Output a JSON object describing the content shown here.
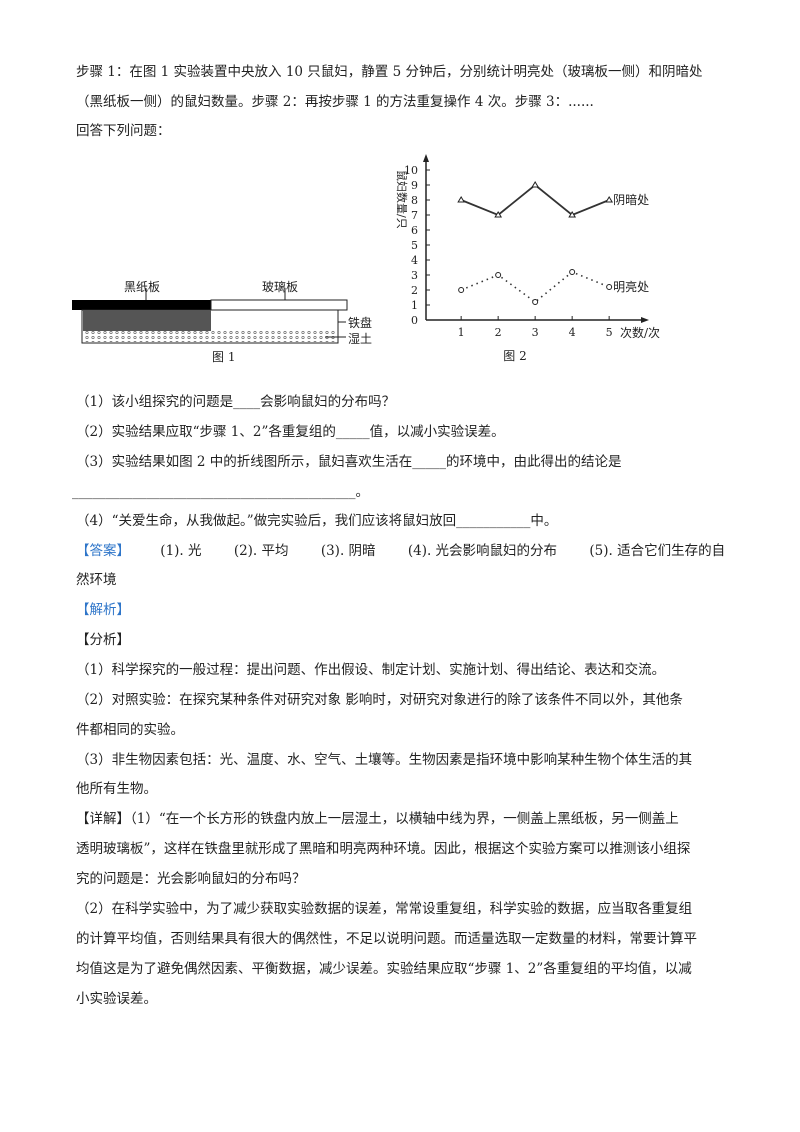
{
  "intro": {
    "lines": [
      "步骤 1：在图 1 实验装置中央放入 10 只鼠妇，静置 5 分钟后，分别统计明亮处（玻璃板一侧）和阴暗处",
      "（黑纸板一侧）的鼠妇数量。步骤 2：再按步骤 1 的方法重复操作 4 次。步骤 3：......",
      "回答下列问题："
    ]
  },
  "figure1": {
    "black_board": "黑纸板",
    "glass_board": "玻璃板",
    "iron_tray": "铁盘",
    "wet_soil": "湿土",
    "caption": "图 1"
  },
  "chart_data": {
    "type": "line",
    "ylabel": "鼠妇数量/只",
    "xlabel": "次数/次",
    "caption": "图 2",
    "x": [
      1,
      2,
      3,
      4,
      5
    ],
    "ylim": [
      0,
      10
    ],
    "yticks": [
      "0",
      "1",
      "2",
      "3",
      "4",
      "5",
      "6",
      "7",
      "8",
      "9",
      "10"
    ],
    "xticks": [
      "1",
      "2",
      "3",
      "4",
      "5"
    ],
    "grid": false,
    "series": [
      {
        "name": "阴暗处",
        "values": [
          8,
          7,
          9,
          7,
          8
        ],
        "style": "solid",
        "marker": "triangle"
      },
      {
        "name": "明亮处",
        "values": [
          2,
          3,
          1.2,
          3.2,
          2.2
        ],
        "style": "dotted",
        "marker": "circle"
      }
    ]
  },
  "questions": {
    "q1": "（1）该小组探究的问题是____会影响鼠妇的分布吗？",
    "q2": "（2）实验结果应取“步骤 1、2”各重复组的_____值，以减小实验误差。",
    "q3a": "（3）实验结果如图 2 中的折线图所示，鼠妇喜欢生活在_____的环境中，由此得出的结论是",
    "q3b": "__________________________________________。",
    "q4": "（4）“关爱生命，从我做起。”做完实验后，我们应该将鼠妇放回___________中。"
  },
  "answer": {
    "label": "【答案】",
    "items": [
      "(1). 光",
      "(2). 平均",
      "(3). 阴暗",
      "(4). 光会影响鼠妇的分布",
      "(5). 适合它们生存的自"
    ],
    "cont": "然环境"
  },
  "analysis": {
    "label": "【解析】",
    "fenxi": "【分析】",
    "lines": [
      "（1）科学探究的一般过程：提出问题、作出假设、制定计划、实施计划、得出结论、表达和交流。",
      "（2）对照实验：在探究某种条件对研究对象   影响时，对研究对象进行的除了该条件不同以外，其他条",
      "件都相同的实验。",
      "（3）非生物因素包括：光、温度、水、空气、土壤等。生物因素是指环境中影响某种生物个体生活的其",
      "他所有生物。",
      "【详解】（1）“在一个长方形的铁盘内放上一层湿土，以横轴中线为界，一侧盖上黑纸板，另一侧盖上",
      "透明玻璃板”，这样在铁盘里就形成了黑暗和明亮两种环境。因此，根据这个实验方案可以推测该小组探",
      "究的问题是：光会影响鼠妇的分布吗？",
      "（2）在科学实验中，为了减少获取实验数据的误差，常常设重复组，科学实验的数据，应当取各重复组",
      "的计算平均值，否则结果具有很大的偶然性，不足以说明问题。而适量选取一定数量的材料，常要计算平",
      "均值这是为了避免偶然因素、平衡数据，减少误差。实验结果应取“步骤 1、2”各重复组的平均值，以减",
      "小实验误差。"
    ]
  },
  "colors": {
    "answer_label": "#2e75c9",
    "text": "#222222"
  }
}
